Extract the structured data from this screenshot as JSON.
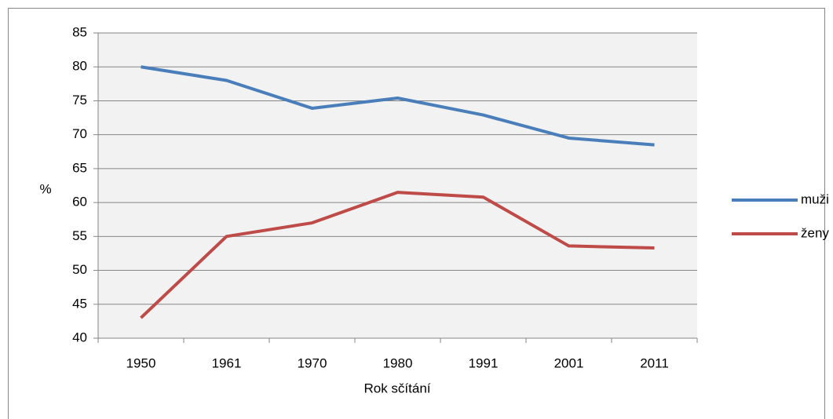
{
  "chart_data": {
    "type": "line",
    "y_label": "%",
    "x_label": "Rok sčítání",
    "categories": [
      "1950",
      "1961",
      "1970",
      "1980",
      "1991",
      "2001",
      "2011"
    ],
    "series": [
      {
        "name": "muži",
        "color": "#4a7ebb",
        "values": [
          80,
          78,
          73.9,
          75.4,
          72.9,
          69.5,
          68.5
        ]
      },
      {
        "name": "ženy",
        "color": "#be4b48",
        "values": [
          43,
          55,
          57,
          61.5,
          60.8,
          53.6,
          53.3
        ]
      }
    ],
    "ylim": [
      40,
      85
    ],
    "yticks": [
      40,
      45,
      50,
      55,
      60,
      65,
      70,
      75,
      80,
      85
    ],
    "grid": true,
    "legend": "right",
    "plot_background": "#f2f2f2"
  }
}
